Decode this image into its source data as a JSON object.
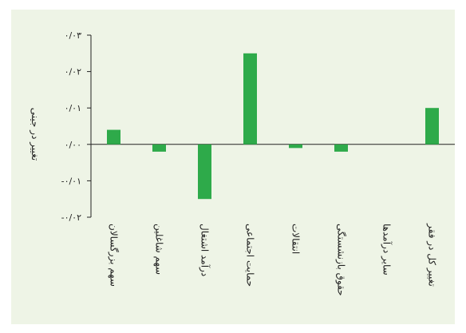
{
  "chart_data": {
    "type": "bar",
    "title": "",
    "xlabel": "",
    "ylabel": "تغییر در جینی",
    "categories": [
      "سهم بزرگسالان",
      "سهم شاغلین",
      "درآمد اشتغال",
      "حمایت اجتماعی",
      "انتقالات",
      "حقوق بازنشستگی",
      "سایر درآمدها",
      "تغییر کل در فقر"
    ],
    "values": [
      0.004,
      -0.002,
      -0.015,
      0.025,
      -0.001,
      -0.002,
      0.0,
      0.01
    ],
    "ylim": [
      -0.02,
      0.03
    ],
    "yticks": [
      -0.02,
      -0.01,
      0.0,
      0.01,
      0.02,
      0.03
    ],
    "ytick_labels": [
      "-۰/۰۲",
      "-۰/۰۱",
      "۰/۰۰",
      "۰/۰۱",
      "۰/۰۲",
      "۰/۰۳"
    ],
    "grid": false,
    "bar_color": "#2eaa4a",
    "background_color": "#eef4e6"
  }
}
